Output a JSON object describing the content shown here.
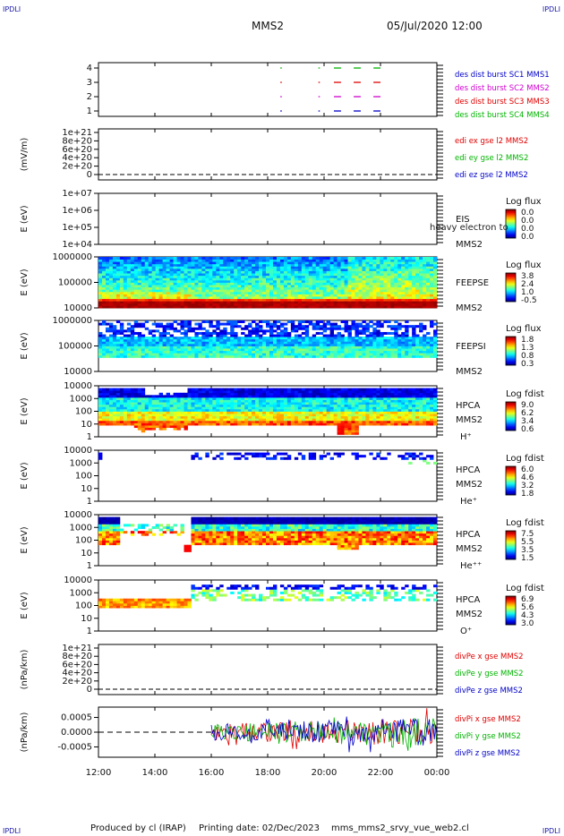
{
  "header": {
    "corner_tl": "IPDLI",
    "corner_tr": "IPDLI",
    "corner_bl": "IPDLI",
    "corner_br": "IPDLI",
    "spacecraft": "MMS2",
    "datetime": "05/Jul/2020 12:00"
  },
  "footer": {
    "produced_by": "Produced by cl (IRAP)",
    "printing_date": "Printing date: 02/Dec/2023",
    "script_name": "mms_mms2_srvy_vue_web2.cl"
  },
  "colors": {
    "sc1": "#0000c8",
    "sc2": "#d000d0",
    "sc3": "#e00000",
    "sc4": "#00b400",
    "red": "#e00000",
    "green": "#00b400",
    "blue": "#0000c8"
  },
  "chart_data": {
    "type": "multi-panel spectrogram / time series",
    "time_axis": {
      "ticks": [
        "12:00",
        "14:00",
        "16:00",
        "18:00",
        "20:00",
        "22:00",
        "00:00"
      ],
      "range_hours": [
        12,
        24
      ]
    },
    "panels": [
      {
        "id": "burst",
        "kind": "burst",
        "ylabel": "",
        "yticks": [
          "4",
          "3",
          "2",
          "1"
        ],
        "legend": [
          {
            "text": "des dist burst SC1 MMS1",
            "color": "blue"
          },
          {
            "text": "des dist burst SC2 MMS2",
            "color": "sc2"
          },
          {
            "text": "des dist burst SC3 MMS3",
            "color": "red"
          },
          {
            "text": "des dist burst SC4 MMS4",
            "color": "green"
          }
        ],
        "intervals_hours": [
          [
            18.45,
            18.5
          ],
          [
            19.8,
            19.85
          ],
          [
            20.35,
            20.6
          ],
          [
            21.05,
            21.3
          ],
          [
            21.75,
            22.0
          ]
        ]
      },
      {
        "id": "edi",
        "kind": "line",
        "ylabel": "(mV/m)",
        "yticks": [
          "1e+21",
          "8e+20",
          "6e+20",
          "4e+20",
          "2e+20",
          "0"
        ],
        "legend": [
          {
            "text": "edi ex gse l2 MMS2",
            "color": "red"
          },
          {
            "text": "edi ey gse l2 MMS2",
            "color": "green"
          },
          {
            "text": "edi ez gse l2 MMS2",
            "color": "blue"
          }
        ]
      },
      {
        "id": "eis",
        "kind": "spectrogram",
        "ylabel": "E (eV)",
        "yticks": [
          "1e+07",
          "1e+06",
          "1e+05",
          "1e+04"
        ],
        "right_labels": [
          "EIS",
          "MMS2"
        ],
        "overlay_text": "heavy electron to",
        "cbar_title": "Log flux",
        "cbar_ticks": [
          "0.0",
          "0.0",
          "0.0",
          "0.0"
        ]
      },
      {
        "id": "feepse",
        "kind": "spectrogram",
        "ylabel": "E (eV)",
        "yticks": [
          "1000000",
          "100000",
          "10000"
        ],
        "right_labels": [
          "FEEPSE",
          "MMS2"
        ],
        "cbar_title": "Log flux",
        "cbar_ticks": [
          "3.8",
          "2.4",
          "1.0",
          "-0.5"
        ]
      },
      {
        "id": "feepsi",
        "kind": "spectrogram",
        "ylabel": "E (eV)",
        "yticks": [
          "1000000",
          "100000",
          "10000"
        ],
        "right_labels": [
          "FEEPSI",
          "MMS2"
        ],
        "cbar_title": "Log flux",
        "cbar_ticks": [
          "1.8",
          "1.3",
          "0.8",
          "0.3"
        ]
      },
      {
        "id": "hpca_h",
        "kind": "spectrogram",
        "ylabel": "E (eV)",
        "yticks": [
          "10000",
          "1000",
          "100",
          "10",
          "1"
        ],
        "right_labels": [
          "HPCA",
          "MMS2",
          "H⁺"
        ],
        "cbar_title": "Log fdist",
        "cbar_ticks": [
          "9.0",
          "6.2",
          "3.4",
          "0.6"
        ]
      },
      {
        "id": "hpca_he",
        "kind": "spectrogram",
        "ylabel": "E (eV)",
        "yticks": [
          "10000",
          "1000",
          "100",
          "10",
          "1"
        ],
        "right_labels": [
          "HPCA",
          "MMS2",
          "He⁺"
        ],
        "cbar_title": "Log fdist",
        "cbar_ticks": [
          "6.0",
          "4.6",
          "3.2",
          "1.8"
        ]
      },
      {
        "id": "hpca_he2",
        "kind": "spectrogram",
        "ylabel": "E (eV)",
        "yticks": [
          "10000",
          "1000",
          "100",
          "10",
          "1"
        ],
        "right_labels": [
          "HPCA",
          "MMS2",
          "He⁺⁺"
        ],
        "cbar_title": "Log fdist",
        "cbar_ticks": [
          "7.5",
          "5.5",
          "3.5",
          "1.5"
        ]
      },
      {
        "id": "hpca_o",
        "kind": "spectrogram",
        "ylabel": "E (eV)",
        "yticks": [
          "10000",
          "1000",
          "100",
          "10",
          "1"
        ],
        "right_labels": [
          "HPCA",
          "MMS2",
          "O⁺"
        ],
        "cbar_title": "Log fdist",
        "cbar_ticks": [
          "6.9",
          "5.6",
          "4.3",
          "3.0"
        ]
      },
      {
        "id": "divpe",
        "kind": "line",
        "ylabel": "(nPa/km)",
        "yticks": [
          "1e+21",
          "8e+20",
          "6e+20",
          "4e+20",
          "2e+20",
          "0"
        ],
        "legend": [
          {
            "text": "divPe x gse MMS2",
            "color": "red"
          },
          {
            "text": "divPe y gse MMS2",
            "color": "green"
          },
          {
            "text": "divPe z gse MMS2",
            "color": "blue"
          }
        ]
      },
      {
        "id": "divpi",
        "kind": "noise",
        "ylabel": "(nPa/km)",
        "yticks": [
          "0.0005",
          "0.0000",
          "-0.0005"
        ],
        "ylim": [
          -0.00085,
          0.00085
        ],
        "data_start_hour": 16.0,
        "legend": [
          {
            "text": "divPi x gse MMS2",
            "color": "red"
          },
          {
            "text": "divPi y gse MMS2",
            "color": "green"
          },
          {
            "text": "divPi z gse MMS2",
            "color": "blue"
          }
        ]
      }
    ]
  }
}
